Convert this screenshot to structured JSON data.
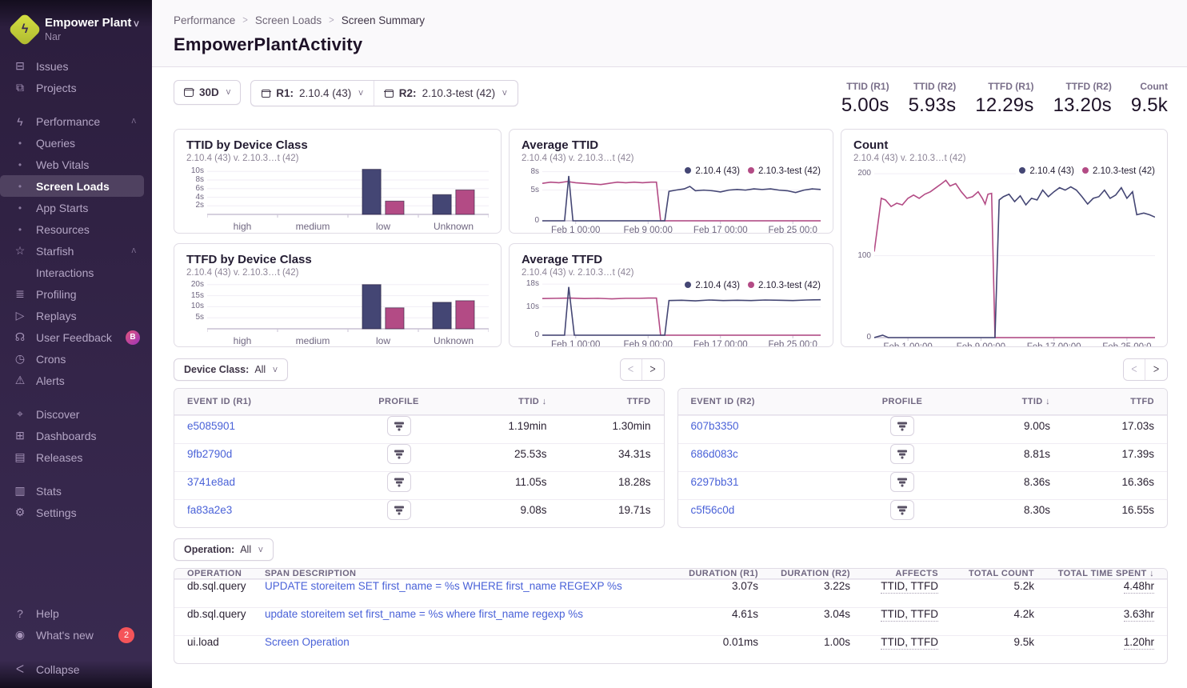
{
  "org": {
    "name": "Empower Plant",
    "subtitle": "Nar"
  },
  "sidebar": {
    "items": [
      {
        "type": "main",
        "icon": "issues-icon",
        "glyph": "⊟",
        "label": "Issues"
      },
      {
        "type": "main",
        "icon": "projects-icon",
        "glyph": "⧉",
        "label": "Projects"
      },
      {
        "type": "gap"
      },
      {
        "type": "main",
        "icon": "performance-icon",
        "glyph": "ϟ",
        "label": "Performance",
        "chevron": "up"
      },
      {
        "type": "sub",
        "label": "Queries"
      },
      {
        "type": "sub",
        "label": "Web Vitals"
      },
      {
        "type": "sub",
        "label": "Screen Loads",
        "active": true
      },
      {
        "type": "sub",
        "label": "App Starts"
      },
      {
        "type": "sub",
        "label": "Resources"
      },
      {
        "type": "main",
        "icon": "starfish-icon",
        "glyph": "☆",
        "label": "Starfish",
        "chevron": "up"
      },
      {
        "type": "sub-plain",
        "label": "Interactions"
      },
      {
        "type": "main",
        "icon": "profiling-icon",
        "glyph": "≣",
        "label": "Profiling"
      },
      {
        "type": "main",
        "icon": "replays-icon",
        "glyph": "▷",
        "label": "Replays"
      },
      {
        "type": "main",
        "icon": "user-feedback-icon",
        "glyph": "☊",
        "label": "User Feedback",
        "badge": "B"
      },
      {
        "type": "main",
        "icon": "crons-icon",
        "glyph": "◷",
        "label": "Crons"
      },
      {
        "type": "main",
        "icon": "alerts-icon",
        "glyph": "⚠",
        "label": "Alerts"
      },
      {
        "type": "gap"
      },
      {
        "type": "main",
        "icon": "discover-icon",
        "glyph": "⌖",
        "label": "Discover"
      },
      {
        "type": "main",
        "icon": "dashboards-icon",
        "glyph": "⊞",
        "label": "Dashboards"
      },
      {
        "type": "main",
        "icon": "releases-icon",
        "glyph": "▤",
        "label": "Releases"
      },
      {
        "type": "gap"
      },
      {
        "type": "main",
        "icon": "stats-icon",
        "glyph": "▥",
        "label": "Stats"
      },
      {
        "type": "main",
        "icon": "settings-icon",
        "glyph": "⚙",
        "label": "Settings"
      }
    ],
    "footer": [
      {
        "icon": "help-icon",
        "glyph": "?",
        "label": "Help"
      },
      {
        "icon": "whats-new-icon",
        "glyph": "◉",
        "label": "What's new",
        "badge": "2"
      }
    ],
    "collapse_label": "Collapse"
  },
  "breadcrumb": [
    "Performance",
    "Screen Loads",
    "Screen Summary"
  ],
  "page": {
    "title": "EmpowerPlantActivity"
  },
  "filters": {
    "date": "30D",
    "r1_label": "R1:",
    "r1_value": "2.10.4 (43)",
    "r2_label": "R2:",
    "r2_value": "2.10.3-test (42)",
    "device_class_label": "Device Class:",
    "device_class_value": "All",
    "operation_label": "Operation:",
    "operation_value": "All"
  },
  "metrics": [
    {
      "label": "TTID (R1)",
      "value": "5.00s"
    },
    {
      "label": "TTID (R2)",
      "value": "5.93s"
    },
    {
      "label": "TTFD (R1)",
      "value": "12.29s"
    },
    {
      "label": "TTFD (R2)",
      "value": "13.20s"
    },
    {
      "label": "Count",
      "value": "9.5k"
    }
  ],
  "colors": {
    "r1_series": "#444674",
    "r2_series": "#b34b85",
    "link_blue": "#4a62d8",
    "badge_red": "#f55459"
  },
  "chart_data": [
    {
      "id": "ttid-device-class",
      "type": "bar",
      "title": "TTID by Device Class",
      "subtitle": "2.10.4 (43) v. 2.10.3…t (42)",
      "categories": [
        "high",
        "medium",
        "low",
        "Unknown"
      ],
      "series": [
        {
          "name": "2.10.4 (43)",
          "color": "#444674",
          "values": [
            0,
            0,
            10.5,
            4.6
          ]
        },
        {
          "name": "2.10.3-test (42)",
          "color": "#b34b85",
          "values": [
            0,
            0,
            3.1,
            5.7
          ]
        }
      ],
      "ylabel": "seconds",
      "yticks": [
        2,
        4,
        6,
        8,
        10
      ],
      "ytick_suffix": "s",
      "ylim": [
        0,
        10.8
      ],
      "grid": true
    },
    {
      "id": "average-ttid",
      "type": "line",
      "title": "Average TTID",
      "subtitle": "2.10.4 (43) v. 2.10.3…t (42)",
      "legend": [
        {
          "name": "2.10.4 (43)",
          "color": "#444674"
        },
        {
          "name": "2.10.3-test (42)",
          "color": "#b34b85"
        }
      ],
      "yticks": [
        {
          "v": 0,
          "l": "0"
        },
        {
          "v": 5,
          "l": "5s"
        },
        {
          "v": 8,
          "l": "8s"
        }
      ],
      "ylim": [
        0,
        8.6
      ],
      "xticks": [
        {
          "p": 12,
          "l": "Feb 1 00:00"
        },
        {
          "p": 38,
          "l": "Feb 9 00:00"
        },
        {
          "p": 64,
          "l": "Feb 17 00:00"
        },
        {
          "p": 90,
          "l": "Feb 25 00:0"
        }
      ],
      "series": [
        {
          "name": "2.10.4 (43)",
          "color": "#444674",
          "points": [
            [
              0,
              0
            ],
            [
              8,
              0
            ],
            [
              9.5,
              7.3
            ],
            [
              11,
              0
            ],
            [
              44,
              0
            ],
            [
              45.5,
              4.8
            ],
            [
              48,
              5.0
            ],
            [
              51,
              5.2
            ],
            [
              53,
              5.6
            ],
            [
              55,
              4.9
            ],
            [
              58,
              5.0
            ],
            [
              61,
              4.9
            ],
            [
              64,
              4.7
            ],
            [
              67,
              5.0
            ],
            [
              70,
              5.1
            ],
            [
              73,
              5.0
            ],
            [
              76,
              5.2
            ],
            [
              79,
              5.1
            ],
            [
              82,
              5.2
            ],
            [
              85,
              5.0
            ],
            [
              88,
              4.9
            ],
            [
              91,
              4.6
            ],
            [
              94,
              5.0
            ],
            [
              97,
              5.2
            ],
            [
              100,
              5.1
            ]
          ]
        },
        {
          "name": "2.10.3-test (42)",
          "color": "#b34b85",
          "points": [
            [
              0,
              6.1
            ],
            [
              3,
              6.3
            ],
            [
              6,
              6.2
            ],
            [
              9,
              6.4
            ],
            [
              12,
              6.2
            ],
            [
              15,
              6.1
            ],
            [
              18,
              6.0
            ],
            [
              21,
              5.9
            ],
            [
              24,
              6.1
            ],
            [
              27,
              6.3
            ],
            [
              30,
              6.2
            ],
            [
              33,
              6.3
            ],
            [
              36,
              6.2
            ],
            [
              39,
              6.3
            ],
            [
              41,
              6.3
            ],
            [
              42.5,
              0
            ],
            [
              100,
              0
            ]
          ]
        }
      ]
    },
    {
      "id": "count",
      "type": "line",
      "title": "Count",
      "subtitle": "2.10.4 (43) v. 2.10.3…t (42)",
      "legend": [
        {
          "name": "2.10.4 (43)",
          "color": "#444674"
        },
        {
          "name": "2.10.3-test (42)",
          "color": "#b34b85"
        }
      ],
      "yticks": [
        {
          "v": 0,
          "l": "0"
        },
        {
          "v": 100,
          "l": "100"
        },
        {
          "v": 200,
          "l": "200"
        }
      ],
      "ylim": [
        0,
        207
      ],
      "xticks": [
        {
          "p": 12,
          "l": "Feb 1 00:00"
        },
        {
          "p": 38,
          "l": "Feb 9 00:00"
        },
        {
          "p": 64,
          "l": "Feb 17 00:00"
        },
        {
          "p": 90,
          "l": "Feb 25 00:0"
        }
      ],
      "series": [
        {
          "name": "2.10.4 (43)",
          "color": "#444674",
          "points": [
            [
              0,
              0
            ],
            [
              3,
              3
            ],
            [
              5,
              0
            ],
            [
              43,
              0
            ],
            [
              44.5,
              168
            ],
            [
              46,
              172
            ],
            [
              48,
              175
            ],
            [
              50,
              166
            ],
            [
              52,
              173
            ],
            [
              54,
              162
            ],
            [
              56,
              170
            ],
            [
              58,
              168
            ],
            [
              60,
              180
            ],
            [
              62,
              172
            ],
            [
              64,
              178
            ],
            [
              66,
              183
            ],
            [
              68,
              180
            ],
            [
              70,
              184
            ],
            [
              72,
              180
            ],
            [
              74,
              172
            ],
            [
              76,
              163
            ],
            [
              78,
              170
            ],
            [
              80,
              172
            ],
            [
              82,
              180
            ],
            [
              84,
              170
            ],
            [
              86,
              174
            ],
            [
              88,
              183
            ],
            [
              90,
              170
            ],
            [
              92,
              178
            ],
            [
              93.5,
              150
            ],
            [
              96,
              152
            ],
            [
              98,
              150
            ],
            [
              100,
              147
            ]
          ]
        },
        {
          "name": "2.10.3-test (42)",
          "color": "#b34b85",
          "points": [
            [
              0,
              105
            ],
            [
              2.5,
              170
            ],
            [
              4,
              168
            ],
            [
              6,
              160
            ],
            [
              8,
              164
            ],
            [
              10,
              162
            ],
            [
              12,
              170
            ],
            [
              14,
              174
            ],
            [
              16,
              170
            ],
            [
              18,
              175
            ],
            [
              20,
              178
            ],
            [
              22,
              183
            ],
            [
              24,
              188
            ],
            [
              25.5,
              192
            ],
            [
              27,
              185
            ],
            [
              29,
              188
            ],
            [
              31,
              178
            ],
            [
              33,
              170
            ],
            [
              35,
              172
            ],
            [
              37,
              178
            ],
            [
              38.5,
              170
            ],
            [
              39.5,
              163
            ],
            [
              40.5,
              175
            ],
            [
              41.8,
              176
            ],
            [
              43,
              0
            ],
            [
              100,
              0
            ]
          ]
        }
      ]
    },
    {
      "id": "ttfd-device-class",
      "type": "bar",
      "title": "TTFD by Device Class",
      "subtitle": "2.10.4 (43) v. 2.10.3…t (42)",
      "categories": [
        "high",
        "medium",
        "low",
        "Unknown"
      ],
      "series": [
        {
          "name": "2.10.4 (43)",
          "color": "#444674",
          "values": [
            0,
            0,
            20,
            12
          ]
        },
        {
          "name": "2.10.3-test (42)",
          "color": "#b34b85",
          "values": [
            0,
            0,
            9.5,
            12.7
          ]
        }
      ],
      "ylabel": "seconds",
      "yticks": [
        5,
        10,
        15,
        20
      ],
      "ytick_suffix": "s",
      "ylim": [
        0,
        21
      ],
      "grid": true
    },
    {
      "id": "average-ttfd",
      "type": "line",
      "title": "Average TTFD",
      "subtitle": "2.10.4 (43) v. 2.10.3…t (42)",
      "legend": [
        {
          "name": "2.10.4 (43)",
          "color": "#444674"
        },
        {
          "name": "2.10.3-test (42)",
          "color": "#b34b85"
        }
      ],
      "yticks": [
        {
          "v": 0,
          "l": "0"
        },
        {
          "v": 10,
          "l": "10s"
        },
        {
          "v": 18,
          "l": "18s"
        }
      ],
      "ylim": [
        0,
        18.6
      ],
      "xticks": [
        {
          "p": 12,
          "l": "Feb 1 00:00"
        },
        {
          "p": 38,
          "l": "Feb 9 00:00"
        },
        {
          "p": 64,
          "l": "Feb 17 00:00"
        },
        {
          "p": 90,
          "l": "Feb 25 00:0"
        }
      ],
      "series": [
        {
          "name": "2.10.4 (43)",
          "color": "#444674",
          "points": [
            [
              0,
              0
            ],
            [
              8,
              0
            ],
            [
              9.5,
              17
            ],
            [
              11.5,
              0
            ],
            [
              44,
              0
            ],
            [
              45.5,
              12.2
            ],
            [
              50,
              12.3
            ],
            [
              55,
              12.1
            ],
            [
              60,
              12.4
            ],
            [
              65,
              12.2
            ],
            [
              70,
              12.3
            ],
            [
              75,
              12.2
            ],
            [
              80,
              12.4
            ],
            [
              85,
              12.3
            ],
            [
              90,
              12.2
            ],
            [
              95,
              12.4
            ],
            [
              100,
              12.5
            ]
          ]
        },
        {
          "name": "2.10.3-test (42)",
          "color": "#b34b85",
          "points": [
            [
              0,
              12.9
            ],
            [
              5,
              13
            ],
            [
              10,
              13.1
            ],
            [
              15,
              12.9
            ],
            [
              20,
              13
            ],
            [
              25,
              12.8
            ],
            [
              30,
              13
            ],
            [
              35,
              13
            ],
            [
              38,
              13.1
            ],
            [
              41,
              13.1
            ],
            [
              42.5,
              0
            ],
            [
              100,
              0
            ]
          ]
        }
      ]
    }
  ],
  "event_tables": [
    {
      "columns": [
        "EVENT ID (R1)",
        "PROFILE",
        "TTID",
        "TTFD"
      ],
      "sorted_column": "TTID",
      "sort_dir": "down",
      "rows": [
        {
          "event_id": "e5085901",
          "ttid": "1.19min",
          "ttfd": "1.30min"
        },
        {
          "event_id": "9fb2790d",
          "ttid": "25.53s",
          "ttfd": "34.31s"
        },
        {
          "event_id": "3741e8ad",
          "ttid": "11.05s",
          "ttfd": "18.28s"
        },
        {
          "event_id": "fa83a2e3",
          "ttid": "9.08s",
          "ttfd": "19.71s"
        }
      ]
    },
    {
      "columns": [
        "EVENT ID (R2)",
        "PROFILE",
        "TTID",
        "TTFD"
      ],
      "sorted_column": "TTID",
      "sort_dir": "down",
      "rows": [
        {
          "event_id": "607b3350",
          "ttid": "9.00s",
          "ttfd": "17.03s"
        },
        {
          "event_id": "686d083c",
          "ttid": "8.81s",
          "ttfd": "17.39s"
        },
        {
          "event_id": "6297bb31",
          "ttid": "8.36s",
          "ttfd": "16.36s"
        },
        {
          "event_id": "c5f56c0d",
          "ttid": "8.30s",
          "ttfd": "16.55s"
        }
      ]
    }
  ],
  "span_table": {
    "columns": [
      "OPERATION",
      "SPAN DESCRIPTION",
      "DURATION (R1)",
      "DURATION (R2)",
      "AFFECTS",
      "TOTAL COUNT",
      "TOTAL TIME SPENT"
    ],
    "sorted_column": "TOTAL TIME SPENT",
    "sort_dir": "down",
    "rows": [
      {
        "operation": "db.sql.query",
        "description": "UPDATE storeitem SET first_name = %s WHERE first_name REGEXP %s",
        "duration_r1": "3.07s",
        "duration_r2": "3.22s",
        "affects": "TTID, TTFD",
        "total_count": "5.2k",
        "total_time": "4.48hr"
      },
      {
        "operation": "db.sql.query",
        "description": "update storeitem set first_name = %s where first_name regexp %s",
        "duration_r1": "4.61s",
        "duration_r2": "3.04s",
        "affects": "TTID, TTFD",
        "total_count": "4.2k",
        "total_time": "3.63hr"
      },
      {
        "operation": "ui.load",
        "description": "Screen Operation",
        "duration_r1": "0.01ms",
        "duration_r2": "1.00s",
        "affects": "TTID, TTFD",
        "total_count": "9.5k",
        "total_time": "1.20hr"
      }
    ]
  }
}
